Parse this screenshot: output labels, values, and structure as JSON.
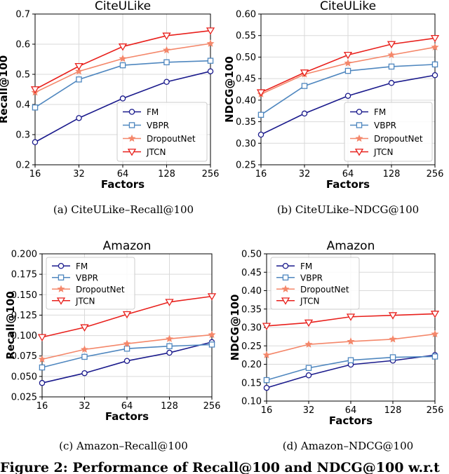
{
  "figure_caption": "Figure 2: Performance of Recall@100 and NDCG@100 w.r.t",
  "colors": {
    "FM": "#1a1a8c",
    "VBPR": "#4f87bf",
    "DropoutNet": "#f4876a",
    "JTCN": "#e8201c"
  },
  "chart_data": [
    {
      "type": "line",
      "title": "CiteULike",
      "caption": "(a)  CiteULike–Recall@100",
      "xlabel": "Factors",
      "ylabel": "Recall@100",
      "categories": [
        "16",
        "32",
        "64",
        "128",
        "256"
      ],
      "yticks": [
        "0.2",
        "0.3",
        "0.4",
        "0.5",
        "0.6",
        "0.7"
      ],
      "ylim": [
        0.2,
        0.7
      ],
      "legend_pos": "lower-right",
      "series": [
        {
          "name": "FM",
          "marker": "circle",
          "values": [
            0.275,
            0.355,
            0.42,
            0.475,
            0.51
          ]
        },
        {
          "name": "VBPR",
          "marker": "square",
          "values": [
            0.39,
            0.483,
            0.53,
            0.54,
            0.545
          ]
        },
        {
          "name": "DropoutNet",
          "marker": "star",
          "values": [
            0.44,
            0.51,
            0.552,
            0.58,
            0.602
          ]
        },
        {
          "name": "JTCN",
          "marker": "triangle",
          "values": [
            0.45,
            0.527,
            0.592,
            0.628,
            0.645
          ]
        }
      ]
    },
    {
      "type": "line",
      "title": "CiteULike",
      "caption": "(b)  CiteULike–NDCG@100",
      "xlabel": "Factors",
      "ylabel": "NDCG@100",
      "categories": [
        "16",
        "32",
        "64",
        "128",
        "256"
      ],
      "yticks": [
        "0.25",
        "0.30",
        "0.35",
        "0.40",
        "0.45",
        "0.50",
        "0.55",
        "0.60"
      ],
      "ylim": [
        0.25,
        0.6
      ],
      "legend_pos": "lower-right",
      "series": [
        {
          "name": "FM",
          "marker": "circle",
          "values": [
            0.32,
            0.369,
            0.41,
            0.44,
            0.458
          ]
        },
        {
          "name": "VBPR",
          "marker": "square",
          "values": [
            0.366,
            0.433,
            0.468,
            0.478,
            0.483
          ]
        },
        {
          "name": "DropoutNet",
          "marker": "star",
          "values": [
            0.414,
            0.46,
            0.486,
            0.505,
            0.523
          ]
        },
        {
          "name": "JTCN",
          "marker": "triangle",
          "values": [
            0.418,
            0.464,
            0.505,
            0.53,
            0.544
          ]
        }
      ]
    },
    {
      "type": "line",
      "title": "Amazon",
      "caption": "(c)  Amazon–Recall@100",
      "xlabel": "Factors",
      "ylabel": "Recall@100",
      "categories": [
        "16",
        "32",
        "64",
        "128",
        "256"
      ],
      "yticks": [
        "0.025",
        "0.050",
        "0.075",
        "0.100",
        "0.125",
        "0.150",
        "0.175",
        "0.200"
      ],
      "ylim": [
        0.025,
        0.2
      ],
      "legend_pos": "upper-left",
      "series": [
        {
          "name": "FM",
          "marker": "circle",
          "values": [
            0.042,
            0.054,
            0.069,
            0.079,
            0.092
          ]
        },
        {
          "name": "VBPR",
          "marker": "square",
          "values": [
            0.061,
            0.074,
            0.084,
            0.087,
            0.089
          ]
        },
        {
          "name": "DropoutNet",
          "marker": "star",
          "values": [
            0.071,
            0.083,
            0.09,
            0.096,
            0.101
          ]
        },
        {
          "name": "JTCN",
          "marker": "triangle",
          "values": [
            0.098,
            0.11,
            0.126,
            0.141,
            0.148
          ]
        }
      ]
    },
    {
      "type": "line",
      "title": "Amazon",
      "caption": "(d)  Amazon–NDCG@100",
      "xlabel": "Factors",
      "ylabel": "NDCG@100",
      "categories": [
        "16",
        "32",
        "64",
        "128",
        "256"
      ],
      "yticks": [
        "0.10",
        "0.15",
        "0.20",
        "0.25",
        "0.30",
        "0.35",
        "0.40",
        "0.45",
        "0.50"
      ],
      "ylim": [
        0.1,
        0.5
      ],
      "legend_pos": "upper-left",
      "series": [
        {
          "name": "FM",
          "marker": "circle",
          "values": [
            0.136,
            0.17,
            0.199,
            0.21,
            0.225
          ]
        },
        {
          "name": "VBPR",
          "marker": "square",
          "values": [
            0.157,
            0.19,
            0.211,
            0.219,
            0.221
          ]
        },
        {
          "name": "DropoutNet",
          "marker": "star",
          "values": [
            0.225,
            0.254,
            0.262,
            0.268,
            0.282
          ]
        },
        {
          "name": "JTCN",
          "marker": "triangle",
          "values": [
            0.304,
            0.313,
            0.329,
            0.333,
            0.337
          ]
        }
      ]
    }
  ]
}
